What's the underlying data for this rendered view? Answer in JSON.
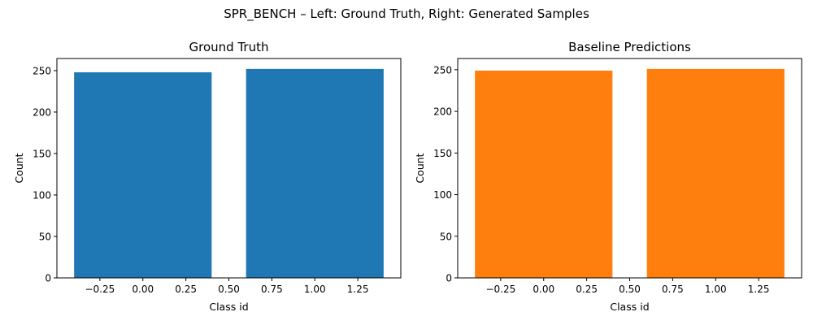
{
  "figure_title": "SPR_BENCH – Left: Ground Truth, Right: Generated Samples",
  "chart_data": [
    {
      "type": "bar",
      "title": "Ground Truth",
      "xlabel": "Class id",
      "ylabel": "Count",
      "x": [
        0,
        1
      ],
      "values": [
        248,
        252
      ],
      "bar_width": 0.8,
      "xlim": [
        -0.5,
        1.5
      ],
      "ylim": [
        0,
        264.6
      ],
      "xticks": [
        -0.25,
        0.0,
        0.25,
        0.5,
        0.75,
        1.0,
        1.25
      ],
      "xtick_labels": [
        "−0.25",
        "0.00",
        "0.25",
        "0.50",
        "0.75",
        "1.00",
        "1.25"
      ],
      "yticks": [
        0,
        50,
        100,
        150,
        200,
        250
      ],
      "ytick_labels": [
        "0",
        "50",
        "100",
        "150",
        "200",
        "250"
      ],
      "color": "#1f77b4",
      "grid": false
    },
    {
      "type": "bar",
      "title": "Baseline Predictions",
      "xlabel": "Class id",
      "ylabel": "Count",
      "x": [
        0,
        1
      ],
      "values": [
        249,
        251
      ],
      "bar_width": 0.8,
      "xlim": [
        -0.5,
        1.5
      ],
      "ylim": [
        0,
        263.55
      ],
      "xticks": [
        -0.25,
        0.0,
        0.25,
        0.5,
        0.75,
        1.0,
        1.25
      ],
      "xtick_labels": [
        "−0.25",
        "0.00",
        "0.25",
        "0.50",
        "0.75",
        "1.00",
        "1.25"
      ],
      "yticks": [
        0,
        50,
        100,
        150,
        200,
        250
      ],
      "ytick_labels": [
        "0",
        "50",
        "100",
        "150",
        "200",
        "250"
      ],
      "color": "#ff7f0e",
      "grid": false
    }
  ]
}
